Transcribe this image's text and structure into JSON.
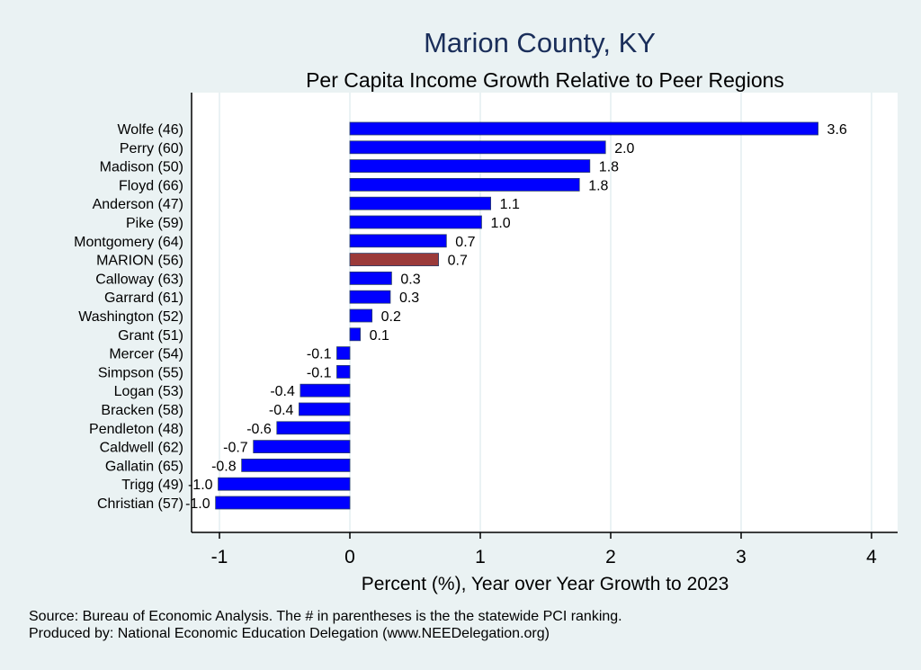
{
  "chart_data": {
    "type": "bar",
    "orientation": "horizontal",
    "title": "Marion County, KY",
    "subtitle": "Per Capita Income Growth Relative to Peer Regions",
    "xlabel": "Percent (%), Year over Year Growth to 2023",
    "ylabel": "",
    "xlim": [
      -1.2,
      4.2
    ],
    "xticks": [
      "-1",
      "0",
      "1",
      "2",
      "3",
      "4"
    ],
    "grid": true,
    "categories": [
      "Wolfe (46)",
      "Perry (60)",
      "Madison (50)",
      "Floyd (66)",
      "Anderson (47)",
      "Pike (59)",
      "Montgomery (64)",
      "MARION (56)",
      "Calloway (63)",
      "Garrard (61)",
      "Washington (52)",
      "Grant (51)",
      "Mercer (54)",
      "Simpson (55)",
      "Logan (53)",
      "Bracken (58)",
      "Pendleton (48)",
      "Caldwell (62)",
      "Gallatin (65)",
      "Trigg (49)",
      "Christian (57)"
    ],
    "values": [
      3.59,
      1.96,
      1.84,
      1.76,
      1.08,
      1.01,
      0.74,
      0.68,
      0.32,
      0.31,
      0.17,
      0.08,
      -0.1,
      -0.1,
      -0.38,
      -0.39,
      -0.56,
      -0.74,
      -0.83,
      -1.01,
      -1.03
    ],
    "data_labels": [
      "3.6",
      "2.0",
      "1.8",
      "1.8",
      "1.1",
      "1.0",
      "0.7",
      "0.7",
      "0.3",
      "0.3",
      "0.2",
      "0.1",
      "-0.1",
      "-0.1",
      "-0.4",
      "-0.4",
      "-0.6",
      "-0.7",
      "-0.8",
      "-1.0",
      "-1.0"
    ],
    "highlight_index": 7,
    "colors": {
      "bar": "#0000ff",
      "highlight": "#9b3a3a",
      "background": "#eaf2f3",
      "plot": "#ffffff",
      "title": "#1a2e5a"
    }
  },
  "footer": {
    "source": "Source: Bureau of Economic Analysis. The # in parentheses is the the statewide PCI ranking.",
    "produced": "Produced by: National Economic Education Delegation (www.NEEDelegation.org)"
  }
}
